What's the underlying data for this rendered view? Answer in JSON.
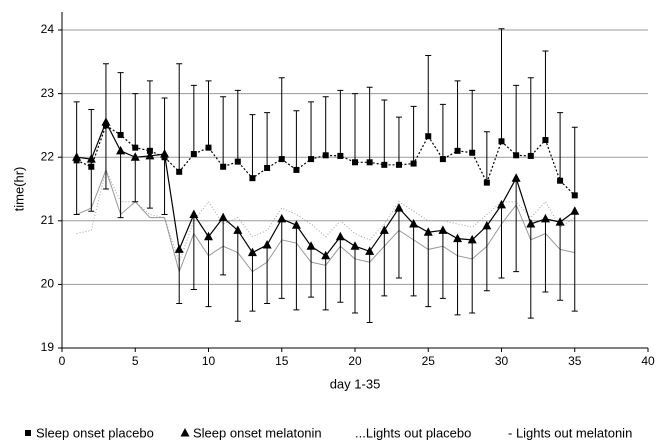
{
  "chart_data": {
    "type": "line",
    "xlabel": "day 1-35",
    "ylabel": "time(hr)",
    "x": [
      1,
      2,
      3,
      4,
      5,
      6,
      7,
      8,
      9,
      10,
      11,
      12,
      13,
      14,
      15,
      16,
      17,
      18,
      19,
      20,
      21,
      22,
      23,
      24,
      25,
      26,
      27,
      28,
      29,
      30,
      31,
      32,
      33,
      34,
      35
    ],
    "xlim": [
      0,
      40
    ],
    "xticks": [
      0,
      5,
      10,
      15,
      20,
      25,
      30,
      35,
      40
    ],
    "ylim": [
      19,
      24
    ],
    "yticks": [
      19,
      20,
      21,
      22,
      23,
      24
    ],
    "grid": true,
    "series": [
      {
        "name": "...Lights out placebo",
        "color": "#a0a0a0",
        "line": "dotted",
        "marker": null,
        "values": [
          20.8,
          20.85,
          21.8,
          21.3,
          21.3,
          21.1,
          21.05,
          20.35,
          21.0,
          21.3,
          20.95,
          21.05,
          20.75,
          20.85,
          21.2,
          21.1,
          20.95,
          20.75,
          21.0,
          20.8,
          20.7,
          20.95,
          21.3,
          21.15,
          21.0,
          21.0,
          20.95,
          20.9,
          21.1,
          21.3,
          21.3,
          21.05,
          21.3,
          20.9,
          21.05
        ]
      },
      {
        "name": "- Lights out melatonin",
        "color": "#999999",
        "line": "solid",
        "marker": null,
        "values": [
          21.1,
          21.2,
          21.8,
          21.1,
          21.3,
          21.05,
          21.05,
          20.2,
          20.8,
          20.45,
          20.6,
          20.5,
          20.2,
          20.35,
          20.7,
          20.65,
          20.35,
          20.3,
          20.6,
          20.4,
          20.35,
          20.6,
          20.85,
          20.7,
          20.55,
          20.6,
          20.45,
          20.4,
          20.6,
          20.95,
          21.25,
          20.7,
          20.8,
          20.55,
          20.5
        ]
      },
      {
        "name": "Sleep onset placebo",
        "color": "#000000",
        "line": "dotted",
        "marker": "square",
        "values": [
          21.95,
          21.85,
          22.5,
          22.35,
          22.15,
          22.1,
          22.0,
          21.77,
          22.05,
          22.15,
          21.85,
          21.93,
          21.67,
          21.83,
          21.97,
          21.8,
          21.97,
          22.03,
          22.02,
          21.92,
          21.92,
          21.88,
          21.88,
          21.9,
          22.33,
          21.97,
          22.1,
          22.07,
          21.6,
          22.25,
          22.03,
          22.02,
          22.27,
          21.63,
          21.4
        ],
        "error_upper": [
          0.92,
          0.9,
          0.97,
          0.98,
          0.85,
          1.1,
          0.93,
          1.7,
          1.08,
          1.05,
          1.1,
          1.12,
          1.0,
          0.87,
          1.28,
          0.93,
          0.9,
          0.92,
          1.03,
          1.08,
          1.18,
          1.02,
          0.75,
          0.9,
          1.27,
          0.86,
          1.1,
          0.98,
          0.8,
          1.77,
          1.1,
          1.23,
          1.4,
          1.07,
          1.07
        ]
      },
      {
        "name": "Sleep onset melatonin",
        "color": "#000000",
        "line": "solid",
        "marker": "triangle",
        "values": [
          22.0,
          21.97,
          22.55,
          22.1,
          22.0,
          22.02,
          22.05,
          20.55,
          21.1,
          20.75,
          21.05,
          20.85,
          20.5,
          20.62,
          21.03,
          20.93,
          20.6,
          20.45,
          20.75,
          20.6,
          20.52,
          20.85,
          21.2,
          20.95,
          20.82,
          20.85,
          20.72,
          20.7,
          20.92,
          21.25,
          21.67,
          20.95,
          21.03,
          20.98,
          21.15
        ],
        "error_lower": [
          0.9,
          0.82,
          1.05,
          1.05,
          0.7,
          0.82,
          0.95,
          0.85,
          1.18,
          1.1,
          0.9,
          1.43,
          0.92,
          0.92,
          1.25,
          1.33,
          0.8,
          0.85,
          1.03,
          1.05,
          1.12,
          1.03,
          1.1,
          1.13,
          1.17,
          1.07,
          1.2,
          1.15,
          1.02,
          1.15,
          1.47,
          1.48,
          1.15,
          1.23,
          1.57
        ]
      }
    ]
  }
}
